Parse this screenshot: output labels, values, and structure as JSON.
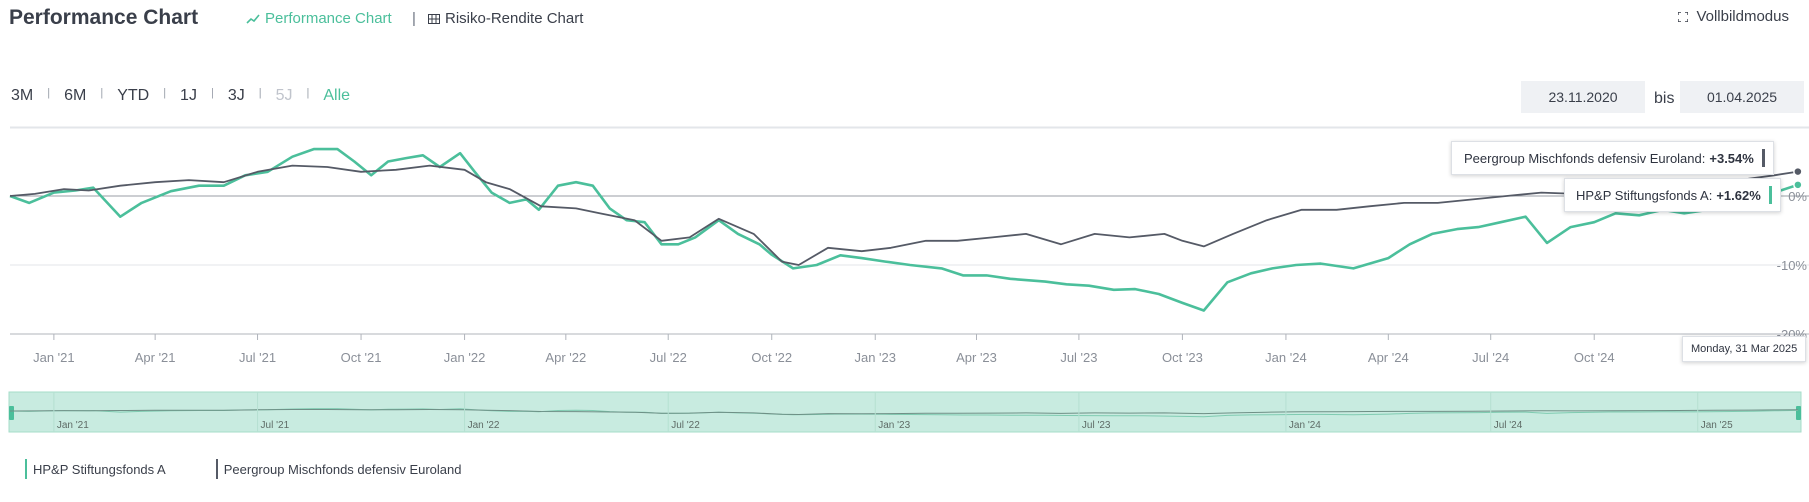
{
  "header": {
    "title": "Performance Chart",
    "tab_performance": "Performance Chart",
    "tab_separator": "|",
    "tab_risk_return": "Risiko-Rendite Chart",
    "fullscreen": "Vollbildmodus"
  },
  "ranges": [
    {
      "label": "3M",
      "state": "normal"
    },
    {
      "label": "6M",
      "state": "normal"
    },
    {
      "label": "YTD",
      "state": "normal"
    },
    {
      "label": "1J",
      "state": "normal"
    },
    {
      "label": "3J",
      "state": "normal"
    },
    {
      "label": "5J",
      "state": "disabled"
    },
    {
      "label": "Alle",
      "state": "active"
    }
  ],
  "date_range": {
    "from": "23.11.2020",
    "separator": "bis",
    "to": "01.04.2025"
  },
  "tooltip": {
    "series1_label": "Peergroup Mischfonds defensiv Euroland:",
    "series1_value": "+3.54%",
    "series2_label": "HP&P Stiftungsfonds A:",
    "series2_value": "+1.62%",
    "date": "Monday, 31 Mar 2025"
  },
  "colors": {
    "fund": "#4bbf9b",
    "peer": "#555a66",
    "accent": "#4bbf9b",
    "navigator_bg": "#c8ebe0"
  },
  "icons": [
    "line-chart-icon",
    "grid-icon",
    "fullscreen-icon"
  ],
  "chart_data": {
    "type": "line",
    "x_axis_labels": [
      "Jan '21",
      "Apr '21",
      "Jul '21",
      "Oct '21",
      "Jan '22",
      "Apr '22",
      "Jul '22",
      "Oct '22",
      "Jan '23",
      "Apr '23",
      "Jul '23",
      "Oct '23",
      "Jan '24",
      "Apr '24",
      "Jul '24",
      "Oct '24"
    ],
    "y_axis_labels": [
      "0%",
      "-10%",
      "-20%"
    ],
    "ylim": [
      -20,
      10
    ],
    "xlim": [
      "2020-11-23",
      "2025-04-01"
    ],
    "navigator_labels": [
      "Jan '21",
      "Jul '21",
      "Jan '22",
      "Jul '22",
      "Jan '23",
      "Jul '23",
      "Jan '24",
      "Jul '24",
      "Jan '25"
    ],
    "series": [
      {
        "name": "HP&P Stiftungsfonds A",
        "x": [
          "2020-11-23",
          "2020-12-10",
          "2021-01-01",
          "2021-01-20",
          "2021-02-05",
          "2021-03-01",
          "2021-03-20",
          "2021-04-15",
          "2021-05-10",
          "2021-06-01",
          "2021-06-20",
          "2021-07-10",
          "2021-08-01",
          "2021-08-20",
          "2021-09-10",
          "2021-09-25",
          "2021-10-10",
          "2021-10-25",
          "2021-11-10",
          "2021-11-25",
          "2021-12-10",
          "2021-12-28",
          "2022-01-10",
          "2022-01-25",
          "2022-02-10",
          "2022-02-25",
          "2022-03-08",
          "2022-03-25",
          "2022-04-10",
          "2022-04-25",
          "2022-05-10",
          "2022-05-25",
          "2022-06-10",
          "2022-06-25",
          "2022-07-10",
          "2022-07-25",
          "2022-08-15",
          "2022-09-01",
          "2022-09-20",
          "2022-10-01",
          "2022-10-20",
          "2022-11-10",
          "2022-12-01",
          "2022-12-20",
          "2023-01-10",
          "2023-02-01",
          "2023-03-01",
          "2023-03-20",
          "2023-04-10",
          "2023-05-01",
          "2023-06-01",
          "2023-06-20",
          "2023-07-10",
          "2023-08-01",
          "2023-08-20",
          "2023-09-10",
          "2023-10-01",
          "2023-10-20",
          "2023-11-10",
          "2023-12-01",
          "2023-12-20",
          "2024-01-10",
          "2024-02-01",
          "2024-03-01",
          "2024-04-01",
          "2024-04-20",
          "2024-05-10",
          "2024-06-01",
          "2024-06-20",
          "2024-07-10",
          "2024-08-01",
          "2024-08-20",
          "2024-09-10",
          "2024-10-01",
          "2024-10-20",
          "2024-11-10",
          "2024-12-01",
          "2024-12-20",
          "2025-01-10",
          "2025-02-01",
          "2025-02-20",
          "2025-03-10",
          "2025-03-31"
        ],
        "values": [
          0.0,
          -1.0,
          0.5,
          0.8,
          1.2,
          -3.0,
          -1.0,
          0.7,
          1.5,
          1.5,
          3.0,
          3.5,
          5.7,
          6.8,
          6.8,
          5.0,
          3.0,
          5.0,
          5.5,
          5.9,
          4.2,
          6.2,
          3.5,
          0.5,
          -1.0,
          -0.5,
          -2.0,
          1.5,
          2.0,
          1.5,
          -1.8,
          -3.5,
          -3.8,
          -7.0,
          -7.0,
          -6.0,
          -3.5,
          -5.5,
          -7.0,
          -8.5,
          -10.5,
          -10.0,
          -8.6,
          -9.0,
          -9.5,
          -10.0,
          -10.5,
          -11.5,
          -11.5,
          -12.0,
          -12.4,
          -12.8,
          -13.0,
          -13.6,
          -13.5,
          -14.2,
          -15.5,
          -16.6,
          -12.5,
          -11.2,
          -10.5,
          -10.0,
          -9.8,
          -10.5,
          -9.0,
          -7.0,
          -5.5,
          -4.8,
          -4.5,
          -3.8,
          -3.0,
          -6.8,
          -4.5,
          -3.8,
          -2.5,
          -2.8,
          -2.0,
          -2.5,
          -2.0,
          -1.5,
          -0.5,
          0.5,
          1.62
        ]
      },
      {
        "name": "Peergroup Mischfonds defensiv Euroland",
        "x": [
          "2020-11-23",
          "2020-12-15",
          "2021-01-10",
          "2021-02-01",
          "2021-03-01",
          "2021-04-01",
          "2021-05-01",
          "2021-06-01",
          "2021-07-01",
          "2021-08-01",
          "2021-09-01",
          "2021-10-01",
          "2021-11-01",
          "2021-12-01",
          "2022-01-01",
          "2022-01-20",
          "2022-02-10",
          "2022-03-10",
          "2022-04-10",
          "2022-05-01",
          "2022-06-01",
          "2022-06-25",
          "2022-07-20",
          "2022-08-15",
          "2022-09-15",
          "2022-10-10",
          "2022-10-25",
          "2022-11-20",
          "2022-12-20",
          "2023-01-15",
          "2023-02-15",
          "2023-03-15",
          "2023-04-15",
          "2023-05-15",
          "2023-06-15",
          "2023-07-15",
          "2023-08-15",
          "2023-09-15",
          "2023-10-01",
          "2023-10-20",
          "2023-11-15",
          "2023-12-15",
          "2024-01-15",
          "2024-02-15",
          "2024-03-15",
          "2024-04-15",
          "2024-05-15",
          "2024-06-15",
          "2024-07-15",
          "2024-08-15",
          "2024-09-15",
          "2024-10-15",
          "2024-11-15",
          "2024-12-15",
          "2025-01-15",
          "2025-02-15",
          "2025-03-10",
          "2025-03-31"
        ],
        "values": [
          0.0,
          0.3,
          1.0,
          0.8,
          1.5,
          2.0,
          2.3,
          2.0,
          3.5,
          4.4,
          4.2,
          3.5,
          3.8,
          4.4,
          3.8,
          2.0,
          1.0,
          -1.5,
          -1.8,
          -2.5,
          -3.5,
          -6.5,
          -6.0,
          -3.3,
          -5.5,
          -9.5,
          -10.0,
          -7.5,
          -8.0,
          -7.5,
          -6.5,
          -6.5,
          -6.0,
          -5.5,
          -7.0,
          -5.5,
          -6.0,
          -5.5,
          -6.5,
          -7.3,
          -5.5,
          -3.5,
          -2.0,
          -2.0,
          -1.5,
          -1.0,
          -1.0,
          -0.5,
          0.0,
          0.5,
          0.3,
          0.8,
          1.0,
          1.5,
          2.0,
          2.5,
          3.0,
          3.54
        ]
      }
    ]
  },
  "legend": [
    "HP&P Stiftungsfonds A",
    "Peergroup Mischfonds defensiv Euroland"
  ]
}
